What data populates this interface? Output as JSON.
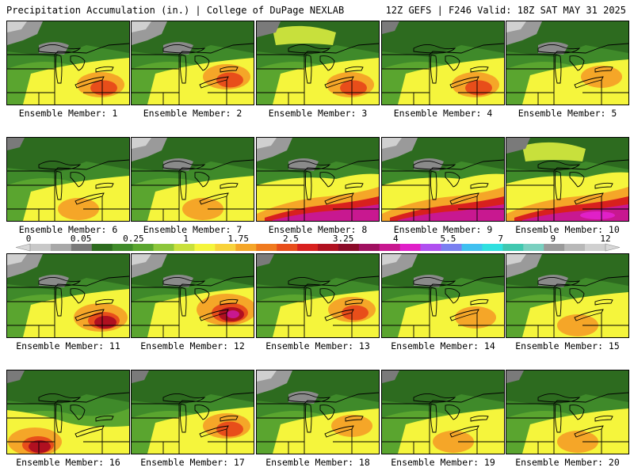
{
  "header": {
    "title_left": "Precipitation Accumulation (in.) | College of DuPage NEXLAB",
    "title_right": "12Z GEFS | F246 Valid: 18Z SAT MAY 31 2025"
  },
  "colorbar": {
    "labels": [
      "0",
      "0.05",
      "0.25",
      "1",
      "1.75",
      "2.5",
      "3.25",
      "4",
      "5.5",
      "7",
      "9",
      "12"
    ],
    "colors": [
      "#c8c8c8",
      "#a8a8a8",
      "#7a7a7a",
      "#2d6b1f",
      "#3f8a2a",
      "#5aa52f",
      "#8cc63b",
      "#c8e03c",
      "#f5f53c",
      "#f8d23a",
      "#f5a628",
      "#f07a1e",
      "#e84e1a",
      "#d8201e",
      "#b01020",
      "#8a0a28",
      "#a01060",
      "#c81890",
      "#e020c8",
      "#b050f0",
      "#7a80f0",
      "#40c0f0",
      "#30e0e0",
      "#40c8b0",
      "#7ad0c0",
      "#9a9a9a",
      "#b8b8b8",
      "#d0d0d0"
    ]
  },
  "panels": [
    {
      "label": "Ensemble Member: 1",
      "intensity": 3,
      "hot": "se",
      "north": "grey"
    },
    {
      "label": "Ensemble Member: 2",
      "intensity": 3,
      "hot": "e",
      "north": "grey"
    },
    {
      "label": "Ensemble Member: 3",
      "intensity": 3,
      "hot": "se",
      "north": "yellow"
    },
    {
      "label": "Ensemble Member: 4",
      "intensity": 3,
      "hot": "se",
      "north": "green"
    },
    {
      "label": "Ensemble Member: 5",
      "intensity": 2,
      "hot": "e",
      "north": "grey"
    },
    {
      "label": "Ensemble Member: 6",
      "intensity": 2,
      "hot": "s",
      "north": "green"
    },
    {
      "label": "Ensemble Member: 7",
      "intensity": 2,
      "hot": "s",
      "north": "grey"
    },
    {
      "label": "Ensemble Member: 8",
      "intensity": 4,
      "hot": "band",
      "north": "grey"
    },
    {
      "label": "Ensemble Member: 9",
      "intensity": 4,
      "hot": "band",
      "north": "grey"
    },
    {
      "label": "Ensemble Member: 10",
      "intensity": 5,
      "hot": "band",
      "north": "yellow"
    },
    {
      "label": "Ensemble Member: 11",
      "intensity": 4,
      "hot": "se",
      "north": "grey"
    },
    {
      "label": "Ensemble Member: 12",
      "intensity": 5,
      "hot": "e",
      "north": "grey"
    },
    {
      "label": "Ensemble Member: 13",
      "intensity": 3,
      "hot": "e",
      "north": "green"
    },
    {
      "label": "Ensemble Member: 14",
      "intensity": 2,
      "hot": "se",
      "north": "grey"
    },
    {
      "label": "Ensemble Member: 15",
      "intensity": 2,
      "hot": "s",
      "north": "grey"
    },
    {
      "label": "Ensemble Member: 16",
      "intensity": 4,
      "hot": "sw",
      "north": "green"
    },
    {
      "label": "Ensemble Member: 17",
      "intensity": 3,
      "hot": "e",
      "north": "green"
    },
    {
      "label": "Ensemble Member: 18",
      "intensity": 2,
      "hot": "e",
      "north": "grey"
    },
    {
      "label": "Ensemble Member: 19",
      "intensity": 2,
      "hot": "s",
      "north": "green"
    },
    {
      "label": "Ensemble Member: 20",
      "intensity": 2,
      "hot": "s",
      "north": "green"
    }
  ]
}
